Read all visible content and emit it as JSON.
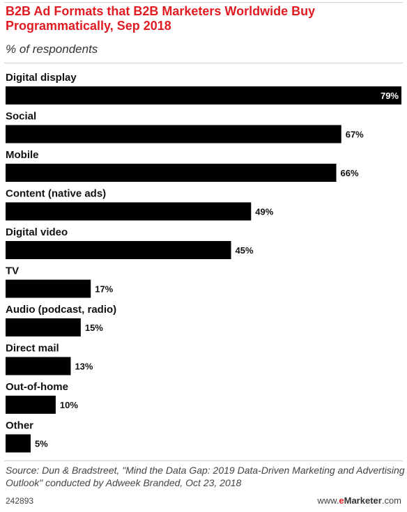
{
  "header": {
    "title": "B2B Ad Formats that B2B Marketers Worldwide Buy Programmatically, Sep 2018",
    "subtitle": "% of respondents"
  },
  "chart_data": {
    "type": "bar",
    "orientation": "horizontal",
    "title": "B2B Ad Formats that B2B Marketers Worldwide Buy Programmatically, Sep 2018",
    "subtitle": "% of respondents",
    "categories": [
      "Digital display",
      "Social",
      "Mobile",
      "Content (native ads)",
      "Digital video",
      "TV",
      "Audio (podcast, radio)",
      "Direct mail",
      "Out-of-home",
      "Other"
    ],
    "values": [
      79,
      67,
      66,
      49,
      45,
      17,
      15,
      13,
      10,
      5
    ],
    "value_labels": [
      "79%",
      "67%",
      "66%",
      "49%",
      "45%",
      "17%",
      "15%",
      "13%",
      "10%",
      "5%"
    ],
    "xlim": [
      0,
      79
    ],
    "grid": false,
    "bar_color": "#000000"
  },
  "footer": {
    "source": "Source: Dun & Bradstreet, \"Mind the Data Gap: 2019 Data-Driven Marketing and Advertising Outlook\" conducted by Adweek Branded, Oct 23, 2018",
    "chart_id": "242893",
    "brand_prefix": "www.",
    "brand_e": "e",
    "brand_name": "Marketer",
    "brand_suffix": ".com"
  },
  "colors": {
    "accent": "#e01b22",
    "bar": "#000000"
  }
}
